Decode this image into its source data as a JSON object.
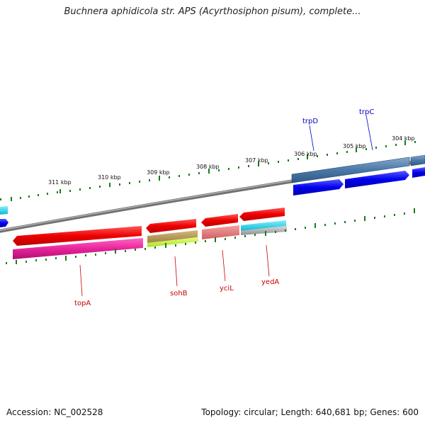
{
  "title": "Buchnera aphidicola str. APS (Acyrthosiphon pisum), complete...",
  "footer": {
    "accession": "Accession: NC_002528",
    "summary": "Topology: circular; Length: 640,681 bp; Genes: 600"
  },
  "tick_labels": [
    "311 kbp",
    "310 kbp",
    "309 kbp",
    "308 kbp",
    "307 kbp",
    "306 kbp",
    "305 kbp",
    "304 kbp"
  ],
  "genes": [
    {
      "name": "trpD",
      "color": "#0000cc"
    },
    {
      "name": "trpC",
      "color": "#0000cc"
    },
    {
      "name": "topA",
      "color": "#cc0000"
    },
    {
      "name": "sohB",
      "color": "#cc0000"
    },
    {
      "name": "yciL",
      "color": "#cc0000"
    },
    {
      "name": "yedA",
      "color": "#cc0000"
    }
  ],
  "colors": {
    "backbone": "#808080",
    "forward_cds": "#0000ee",
    "reverse_cds": "#ee0000",
    "tick": "#1a7a1a"
  }
}
